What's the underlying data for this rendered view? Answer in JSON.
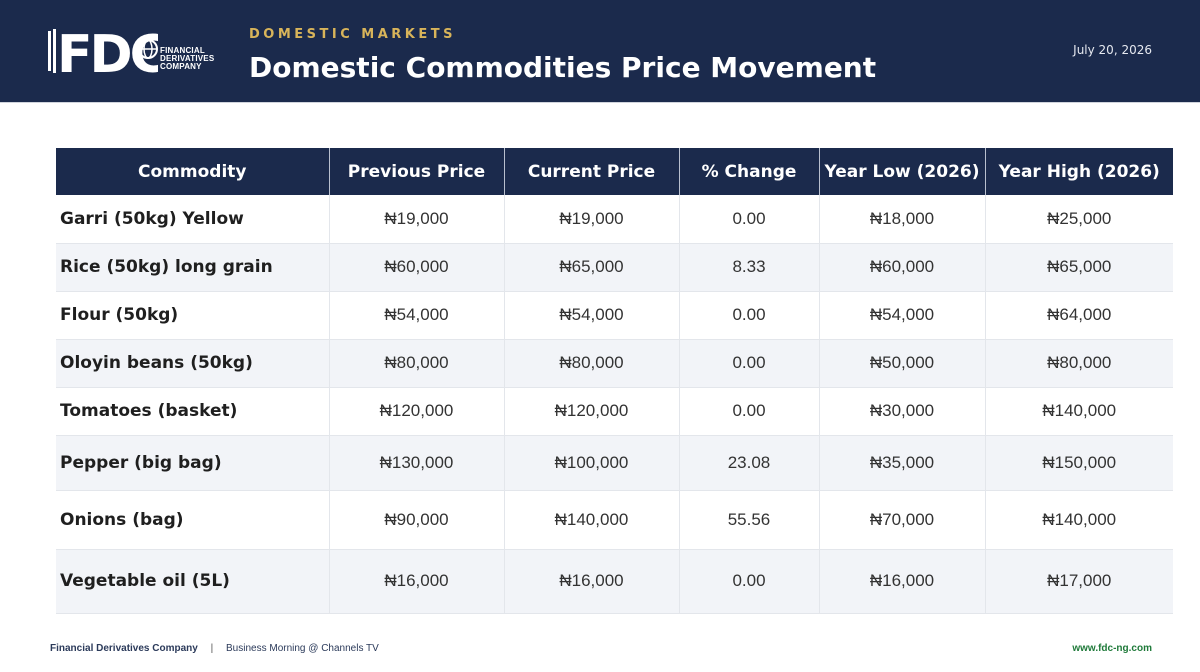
{
  "header": {
    "logo_letters": "FDC",
    "logo_lines": [
      "FINANCIAL",
      "DERIVATIVES",
      "COMPANY"
    ],
    "kicker": "DOMESTIC MARKETS",
    "title": "Domestic Commodities Price Movement",
    "date": "July 20, 2026"
  },
  "table": {
    "columns": [
      "Commodity",
      "Previous Price",
      "Current Price",
      "% Change",
      "Year Low (2026)",
      "Year High (2026)"
    ],
    "rows": [
      {
        "commodity": "Garri (50kg) Yellow",
        "previous": "₦19,000",
        "current": "₦19,000",
        "change": "0.00",
        "low": "₦18,000",
        "high": "₦25,000"
      },
      {
        "commodity": "Rice (50kg) long grain",
        "previous": "₦60,000",
        "current": "₦65,000",
        "change": "8.33",
        "low": "₦60,000",
        "high": "₦65,000"
      },
      {
        "commodity": "Flour (50kg)",
        "previous": "₦54,000",
        "current": "₦54,000",
        "change": "0.00",
        "low": "₦54,000",
        "high": "₦64,000"
      },
      {
        "commodity": "Oloyin beans (50kg)",
        "previous": "₦80,000",
        "current": "₦80,000",
        "change": "0.00",
        "low": "₦50,000",
        "high": "₦80,000"
      },
      {
        "commodity": "Tomatoes (basket)",
        "previous": "₦120,000",
        "current": "₦120,000",
        "change": "0.00",
        "low": "₦30,000",
        "high": "₦140,000"
      },
      {
        "commodity": "Pepper (big bag)",
        "previous": "₦130,000",
        "current": "₦100,000",
        "change": "23.08",
        "low": "₦35,000",
        "high": "₦150,000"
      },
      {
        "commodity": "Onions (bag)",
        "previous": "₦90,000",
        "current": "₦140,000",
        "change": "55.56",
        "low": "₦70,000",
        "high": "₦140,000"
      },
      {
        "commodity": "Vegetable oil (5L)",
        "previous": "₦16,000",
        "current": "₦16,000",
        "change": "0.00",
        "low": "₦16,000",
        "high": "₦17,000"
      }
    ]
  },
  "footer": {
    "company": "Financial Derivatives Company",
    "separator": "|",
    "program": "Business Morning @ Channels TV",
    "website": "www.fdc-ng.com"
  },
  "colors": {
    "navy": "#1b2a4c",
    "gold": "#d8b45a",
    "increase": "#d9262c",
    "decrease": "#1e9b4a"
  }
}
